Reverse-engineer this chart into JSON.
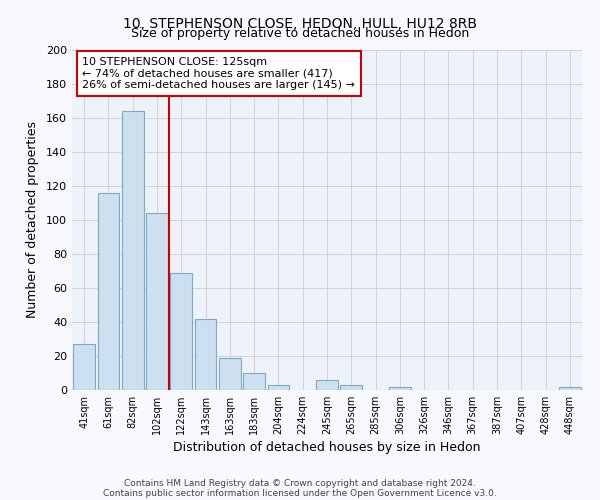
{
  "title": "10, STEPHENSON CLOSE, HEDON, HULL, HU12 8RB",
  "subtitle": "Size of property relative to detached houses in Hedon",
  "xlabel": "Distribution of detached houses by size in Hedon",
  "ylabel": "Number of detached properties",
  "bar_labels": [
    "41sqm",
    "61sqm",
    "82sqm",
    "102sqm",
    "122sqm",
    "143sqm",
    "163sqm",
    "183sqm",
    "204sqm",
    "224sqm",
    "245sqm",
    "265sqm",
    "285sqm",
    "306sqm",
    "326sqm",
    "346sqm",
    "367sqm",
    "387sqm",
    "407sqm",
    "428sqm",
    "448sqm"
  ],
  "bar_values": [
    27,
    116,
    164,
    104,
    69,
    42,
    19,
    10,
    3,
    0,
    6,
    3,
    0,
    2,
    0,
    0,
    0,
    0,
    0,
    0,
    2
  ],
  "bar_color": "#cce0f0",
  "bar_edge_color": "#7aaac8",
  "grid_color": "#cccccc",
  "vline_color": "#cc0000",
  "annotation_title": "10 STEPHENSON CLOSE: 125sqm",
  "annotation_line1": "← 74% of detached houses are smaller (417)",
  "annotation_line2": "26% of semi-detached houses are larger (145) →",
  "ylim": [
    0,
    200
  ],
  "yticks": [
    0,
    20,
    40,
    60,
    80,
    100,
    120,
    140,
    160,
    180,
    200
  ],
  "footer1": "Contains HM Land Registry data © Crown copyright and database right 2024.",
  "footer2": "Contains public sector information licensed under the Open Government Licence v3.0.",
  "bg_color": "#f8f8ff",
  "plot_bg_color": "#eef2fa"
}
